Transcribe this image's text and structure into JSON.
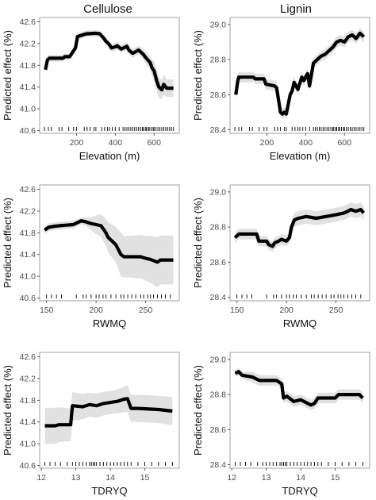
{
  "column_titles": [
    "Cellulose",
    "Lignin"
  ],
  "chart_data": [
    {
      "type": "line",
      "title": "Cellulose",
      "xlabel": "Elevation (m)",
      "ylabel": "Predicted effect (%)",
      "xlim": [
        10,
        730
      ],
      "ylim": [
        40.55,
        42.68
      ],
      "xticks": [
        200,
        400,
        600
      ],
      "xtick_labels": [
        "200",
        "400",
        "600"
      ],
      "yticks": [
        40.6,
        41.0,
        41.4,
        41.8,
        42.2,
        42.6
      ],
      "ytick_labels": [
        "40.6",
        "41.0",
        "41.4",
        "41.8",
        "42.2",
        "42.6"
      ],
      "grid": false,
      "legend": "none",
      "series": [
        {
          "x": [
            40,
            50,
            60,
            130,
            140,
            165,
            195,
            205,
            215,
            250,
            300,
            320,
            340,
            350,
            370,
            380,
            400,
            410,
            430,
            460,
            470,
            490,
            520,
            545,
            555,
            580,
            590,
            600,
            615,
            625,
            640,
            650,
            665,
            700
          ],
          "y": [
            41.72,
            41.9,
            41.93,
            41.93,
            41.96,
            41.96,
            42.12,
            42.33,
            42.34,
            42.38,
            42.39,
            42.38,
            42.3,
            42.25,
            42.18,
            42.12,
            42.14,
            42.16,
            42.1,
            42.15,
            42.08,
            42.02,
            42.08,
            42.0,
            41.95,
            41.85,
            41.75,
            41.7,
            41.5,
            41.4,
            41.35,
            41.45,
            41.38,
            41.38
          ],
          "lower": [
            41.65,
            41.82,
            41.87,
            41.87,
            41.9,
            41.9,
            42.05,
            42.26,
            42.28,
            42.32,
            42.33,
            42.32,
            42.24,
            42.18,
            42.11,
            42.05,
            42.07,
            42.09,
            42.03,
            42.08,
            42.0,
            41.94,
            42.0,
            41.9,
            41.84,
            41.73,
            41.6,
            41.52,
            41.3,
            41.2,
            41.18,
            41.26,
            41.22,
            41.22
          ],
          "upper": [
            41.79,
            41.98,
            41.99,
            41.99,
            42.02,
            42.02,
            42.19,
            42.4,
            42.4,
            42.44,
            42.45,
            42.44,
            42.36,
            42.32,
            42.25,
            42.19,
            42.21,
            42.23,
            42.17,
            42.22,
            42.16,
            42.1,
            42.16,
            42.1,
            42.06,
            41.97,
            41.9,
            41.88,
            41.7,
            41.6,
            41.52,
            41.64,
            41.54,
            41.54
          ]
        }
      ],
      "rug": [
        35,
        55,
        70,
        110,
        125,
        160,
        185,
        200,
        240,
        255,
        270,
        290,
        300,
        330,
        345,
        360,
        370,
        385,
        400,
        420,
        440,
        450,
        460,
        470,
        480,
        490,
        500,
        510,
        520,
        530,
        540,
        545,
        555,
        560,
        570,
        575,
        585,
        595,
        600,
        610,
        620,
        630,
        640,
        650,
        660,
        670,
        680,
        690,
        700
      ]
    },
    {
      "type": "line",
      "title": "Lignin",
      "xlabel": "Elevation (m)",
      "ylabel": "Predicted effect (%)",
      "xlim": [
        10,
        730
      ],
      "ylim": [
        28.38,
        29.04
      ],
      "xticks": [
        200,
        400,
        600
      ],
      "xtick_labels": [
        "200",
        "400",
        "600"
      ],
      "yticks": [
        28.4,
        28.6,
        28.8,
        29.0
      ],
      "ytick_labels": [
        "28.4",
        "28.6",
        "28.8",
        "29.0"
      ],
      "grid": false,
      "legend": "none",
      "series": [
        {
          "x": [
            40,
            50,
            55,
            130,
            140,
            185,
            195,
            240,
            250,
            270,
            280,
            290,
            300,
            320,
            330,
            340,
            360,
            380,
            390,
            410,
            420,
            440,
            460,
            480,
            500,
            520,
            540,
            560,
            580,
            600,
            620,
            640,
            660,
            680,
            700
          ],
          "y": [
            28.6,
            28.68,
            28.7,
            28.7,
            28.69,
            28.69,
            28.66,
            28.65,
            28.64,
            28.5,
            28.49,
            28.5,
            28.49,
            28.6,
            28.62,
            28.67,
            28.63,
            28.7,
            28.68,
            28.72,
            28.65,
            28.78,
            28.8,
            28.82,
            28.83,
            28.85,
            28.87,
            28.9,
            28.91,
            28.9,
            28.93,
            28.94,
            28.92,
            28.95,
            28.93
          ],
          "lower": [
            28.57,
            28.65,
            28.67,
            28.67,
            28.66,
            28.66,
            28.63,
            28.62,
            28.6,
            28.47,
            28.46,
            28.47,
            28.46,
            28.57,
            28.59,
            28.64,
            28.6,
            28.67,
            28.65,
            28.69,
            28.62,
            28.75,
            28.77,
            28.79,
            28.8,
            28.82,
            28.84,
            28.87,
            28.88,
            28.87,
            28.9,
            28.91,
            28.89,
            28.92,
            28.9
          ],
          "upper": [
            28.63,
            28.71,
            28.73,
            28.73,
            28.72,
            28.72,
            28.69,
            28.68,
            28.68,
            28.53,
            28.52,
            28.53,
            28.52,
            28.63,
            28.65,
            28.7,
            28.66,
            28.73,
            28.71,
            28.75,
            28.68,
            28.81,
            28.83,
            28.85,
            28.86,
            28.88,
            28.9,
            28.93,
            28.94,
            28.93,
            28.96,
            28.97,
            28.95,
            28.98,
            28.96
          ]
        }
      ],
      "rug": [
        35,
        55,
        70,
        110,
        125,
        160,
        185,
        200,
        240,
        255,
        270,
        290,
        300,
        330,
        345,
        360,
        370,
        385,
        400,
        420,
        440,
        450,
        460,
        470,
        480,
        490,
        500,
        510,
        520,
        530,
        540,
        545,
        555,
        560,
        570,
        575,
        585,
        595,
        600,
        610,
        620,
        630,
        640,
        650,
        660,
        670,
        680,
        690,
        700
      ]
    },
    {
      "type": "line",
      "title": "",
      "xlabel": "RWMQ",
      "ylabel": "Predicted effect (%)",
      "xlim": [
        143,
        284
      ],
      "ylim": [
        40.55,
        42.68
      ],
      "xticks": [
        150,
        200,
        250
      ],
      "xtick_labels": [
        "150",
        "200",
        "250"
      ],
      "yticks": [
        40.6,
        41.0,
        41.4,
        41.8,
        42.2,
        42.6
      ],
      "ytick_labels": [
        "40.6",
        "41.0",
        "41.4",
        "41.8",
        "42.2",
        "42.6"
      ],
      "grid": false,
      "legend": "none",
      "series": [
        {
          "x": [
            148,
            152,
            158,
            163,
            170,
            177,
            185,
            190,
            195,
            200,
            205,
            210,
            212,
            220,
            225,
            228,
            233,
            245,
            250,
            255,
            262,
            265,
            270,
            278
          ],
          "y": [
            41.85,
            41.9,
            41.92,
            41.93,
            41.94,
            41.95,
            42.02,
            42.0,
            41.97,
            41.95,
            41.93,
            41.8,
            41.72,
            41.58,
            41.4,
            41.36,
            41.36,
            41.36,
            41.33,
            41.31,
            41.26,
            41.3,
            41.3,
            41.3
          ],
          "lower": [
            41.78,
            41.83,
            41.85,
            41.86,
            41.87,
            41.88,
            41.96,
            41.92,
            41.85,
            41.78,
            41.72,
            41.55,
            41.45,
            41.25,
            41.0,
            40.98,
            40.98,
            40.96,
            40.92,
            40.88,
            40.8,
            40.85,
            40.85,
            40.85
          ],
          "upper": [
            41.92,
            41.97,
            41.99,
            42.0,
            42.01,
            42.02,
            42.08,
            42.08,
            42.09,
            42.12,
            42.14,
            42.05,
            41.99,
            41.91,
            41.8,
            41.74,
            41.74,
            41.76,
            41.74,
            41.74,
            41.72,
            41.75,
            41.75,
            41.75
          ]
        }
      ],
      "rug": [
        150,
        155,
        160,
        165,
        180,
        187,
        190,
        195,
        200,
        203,
        207,
        210,
        215,
        220,
        225,
        228,
        232,
        236,
        240,
        245,
        248,
        252,
        255,
        258,
        262,
        266,
        270,
        275
      ]
    },
    {
      "type": "line",
      "title": "",
      "xlabel": "RWMQ",
      "ylabel": "Predicted effect (%)",
      "xlim": [
        143,
        284
      ],
      "ylim": [
        28.38,
        29.04
      ],
      "xticks": [
        150,
        200,
        250
      ],
      "xtick_labels": [
        "150",
        "200",
        "250"
      ],
      "yticks": [
        28.4,
        28.6,
        28.8,
        29.0
      ],
      "ytick_labels": [
        "28.4",
        "28.6",
        "28.8",
        "29.0"
      ],
      "grid": false,
      "legend": "none",
      "series": [
        {
          "x": [
            148,
            152,
            170,
            172,
            180,
            182,
            186,
            188,
            192,
            195,
            200,
            203,
            205,
            208,
            212,
            220,
            230,
            240,
            250,
            258,
            262,
            265,
            270,
            275,
            278
          ],
          "y": [
            28.74,
            28.76,
            28.76,
            28.72,
            28.72,
            28.7,
            28.69,
            28.71,
            28.72,
            28.73,
            28.72,
            28.74,
            28.8,
            28.84,
            28.85,
            28.86,
            28.85,
            28.86,
            28.87,
            28.88,
            28.89,
            28.9,
            28.89,
            28.9,
            28.88
          ],
          "lower": [
            28.71,
            28.73,
            28.73,
            28.69,
            28.69,
            28.67,
            28.66,
            28.68,
            28.69,
            28.7,
            28.69,
            28.71,
            28.76,
            28.8,
            28.81,
            28.82,
            28.81,
            28.82,
            28.83,
            28.84,
            28.85,
            28.86,
            28.85,
            28.86,
            28.84
          ],
          "upper": [
            28.77,
            28.79,
            28.79,
            28.75,
            28.75,
            28.73,
            28.72,
            28.74,
            28.75,
            28.76,
            28.75,
            28.77,
            28.84,
            28.88,
            28.89,
            28.9,
            28.89,
            28.9,
            28.91,
            28.92,
            28.93,
            28.94,
            28.93,
            28.94,
            28.92
          ]
        }
      ],
      "rug": [
        150,
        155,
        160,
        165,
        180,
        187,
        190,
        195,
        200,
        203,
        207,
        210,
        215,
        220,
        225,
        228,
        232,
        236,
        240,
        245,
        248,
        252,
        255,
        258,
        262,
        266,
        270,
        275
      ]
    },
    {
      "type": "line",
      "title": "",
      "xlabel": "TDRYQ",
      "ylabel": "Predicted effect (%)",
      "xlim": [
        11.95,
        16.0
      ],
      "ylim": [
        40.55,
        42.68
      ],
      "xticks": [
        12,
        13,
        14,
        15
      ],
      "xtick_labels": [
        "12",
        "13",
        "14",
        "15"
      ],
      "yticks": [
        40.6,
        41.0,
        41.4,
        41.8,
        42.2,
        42.6
      ],
      "ytick_labels": [
        "40.6",
        "41.0",
        "41.4",
        "41.8",
        "42.2",
        "42.6"
      ],
      "grid": false,
      "legend": "none",
      "series": [
        {
          "x": [
            12.1,
            12.4,
            12.5,
            12.85,
            12.9,
            13.2,
            13.4,
            13.6,
            13.8,
            14.0,
            14.2,
            14.4,
            14.5,
            14.6,
            14.8,
            15.4,
            15.8
          ],
          "y": [
            41.33,
            41.33,
            41.35,
            41.35,
            41.7,
            41.68,
            41.72,
            41.7,
            41.74,
            41.76,
            41.78,
            41.82,
            41.83,
            41.65,
            41.65,
            41.63,
            41.6
          ],
          "lower": [
            41.0,
            41.0,
            41.03,
            41.05,
            41.42,
            41.45,
            41.5,
            41.48,
            41.52,
            41.55,
            41.56,
            41.58,
            41.58,
            41.4,
            41.4,
            41.38,
            41.34
          ],
          "upper": [
            41.66,
            41.66,
            41.67,
            41.65,
            41.95,
            41.92,
            41.94,
            41.92,
            41.96,
            41.97,
            42.0,
            42.05,
            42.08,
            41.9,
            41.9,
            41.88,
            41.86
          ]
        }
      ],
      "rug": [
        12.1,
        12.25,
        12.4,
        12.55,
        12.75,
        12.9,
        13.0,
        13.1,
        13.2,
        13.3,
        13.4,
        13.45,
        13.5,
        13.55,
        13.6,
        13.7,
        13.8,
        13.9,
        14.0,
        14.1,
        14.2,
        14.3,
        14.4,
        14.5,
        14.6,
        14.8,
        15.0,
        15.2,
        15.4,
        15.6,
        15.8
      ]
    },
    {
      "type": "line",
      "title": "",
      "xlabel": "TDRYQ",
      "ylabel": "Predicted effect (%)",
      "xlim": [
        11.95,
        16.0
      ],
      "ylim": [
        28.38,
        29.04
      ],
      "xticks": [
        12,
        13,
        14,
        15
      ],
      "xtick_labels": [
        "12",
        "13",
        "14",
        "15"
      ],
      "yticks": [
        28.4,
        28.6,
        28.8,
        29.0
      ],
      "ytick_labels": [
        "28.4",
        "28.6",
        "28.8",
        "29.0"
      ],
      "grid": false,
      "legend": "none",
      "series": [
        {
          "x": [
            12.1,
            12.2,
            12.3,
            12.6,
            12.8,
            13.3,
            13.45,
            13.5,
            13.6,
            13.8,
            14.0,
            14.2,
            14.3,
            14.4,
            14.5,
            14.6,
            15.0,
            15.1,
            15.5,
            15.7,
            15.8
          ],
          "y": [
            28.92,
            28.93,
            28.91,
            28.9,
            28.88,
            28.88,
            28.86,
            28.78,
            28.79,
            28.76,
            28.77,
            28.75,
            28.74,
            28.75,
            28.78,
            28.78,
            28.78,
            28.8,
            28.8,
            28.8,
            28.78
          ],
          "lower": [
            28.9,
            28.91,
            28.89,
            28.87,
            28.85,
            28.85,
            28.83,
            28.75,
            28.76,
            28.73,
            28.74,
            28.72,
            28.71,
            28.72,
            28.75,
            28.75,
            28.75,
            28.77,
            28.77,
            28.77,
            28.75
          ],
          "upper": [
            28.94,
            28.95,
            28.93,
            28.93,
            28.91,
            28.91,
            28.89,
            28.81,
            28.82,
            28.79,
            28.8,
            28.78,
            28.77,
            28.78,
            28.81,
            28.81,
            28.81,
            28.83,
            28.83,
            28.83,
            28.81
          ]
        }
      ],
      "rug": [
        12.1,
        12.25,
        12.4,
        12.55,
        12.75,
        12.9,
        13.0,
        13.1,
        13.2,
        13.3,
        13.4,
        13.45,
        13.5,
        13.55,
        13.6,
        13.7,
        13.8,
        13.9,
        14.0,
        14.1,
        14.2,
        14.3,
        14.4,
        14.5,
        14.6,
        14.8,
        15.0,
        15.2,
        15.4,
        15.6,
        15.8
      ]
    }
  ]
}
